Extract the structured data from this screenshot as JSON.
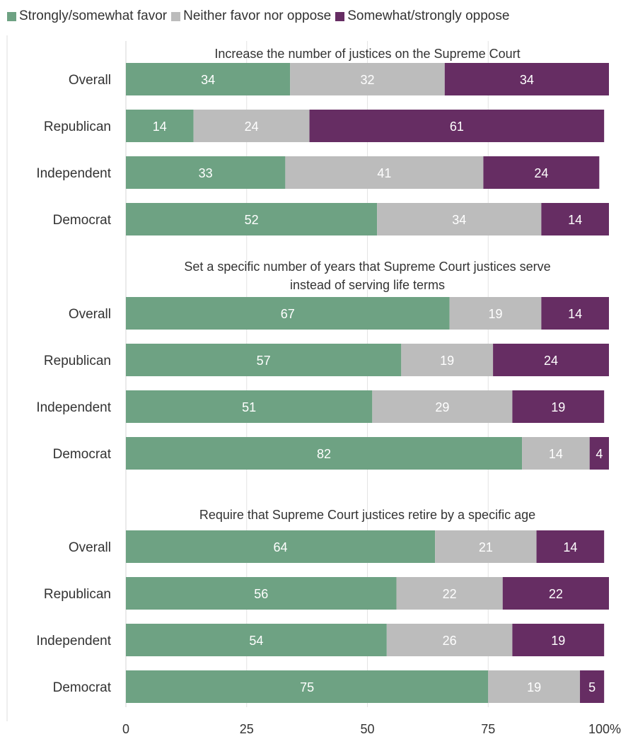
{
  "chart_data": {
    "type": "bar",
    "orientation": "horizontal",
    "stacked": true,
    "xlim": [
      0,
      100
    ],
    "x_ticks": [
      "0",
      "25",
      "50",
      "75",
      "100%"
    ],
    "grid": true,
    "legend_position": "top",
    "series": [
      {
        "name": "Strongly/somewhat favor",
        "color": "#6ea283",
        "label_color": "#ffffff"
      },
      {
        "name": "Neither favor nor oppose",
        "color": "#bcbcbc",
        "label_color": "#ffffff"
      },
      {
        "name": "Somewhat/strongly oppose",
        "color": "#662d63",
        "label_color": "#ffffff"
      }
    ],
    "groups": [
      {
        "title_lines": [
          "Increase the number of justices on the Supreme Court"
        ],
        "rows": [
          {
            "category": "Overall",
            "values": [
              34,
              32,
              34
            ]
          },
          {
            "category": "Republican",
            "values": [
              14,
              24,
              61
            ]
          },
          {
            "category": "Independent",
            "values": [
              33,
              41,
              24
            ]
          },
          {
            "category": "Democrat",
            "values": [
              52,
              34,
              14
            ]
          }
        ]
      },
      {
        "title_lines": [
          "Set a specific number of years that Supreme Court justices serve",
          "instead of serving life terms"
        ],
        "rows": [
          {
            "category": "Overall",
            "values": [
              67,
              19,
              14
            ]
          },
          {
            "category": "Republican",
            "values": [
              57,
              19,
              24
            ]
          },
          {
            "category": "Independent",
            "values": [
              51,
              29,
              19
            ]
          },
          {
            "category": "Democrat",
            "values": [
              82,
              14,
              4
            ]
          }
        ]
      },
      {
        "title_lines": [
          "Require that Supreme Court justices retire by a specific age"
        ],
        "rows": [
          {
            "category": "Overall",
            "values": [
              64,
              21,
              14
            ]
          },
          {
            "category": "Republican",
            "values": [
              56,
              22,
              22
            ]
          },
          {
            "category": "Independent",
            "values": [
              54,
              26,
              19
            ]
          },
          {
            "category": "Democrat",
            "values": [
              75,
              19,
              5
            ]
          }
        ]
      }
    ]
  }
}
